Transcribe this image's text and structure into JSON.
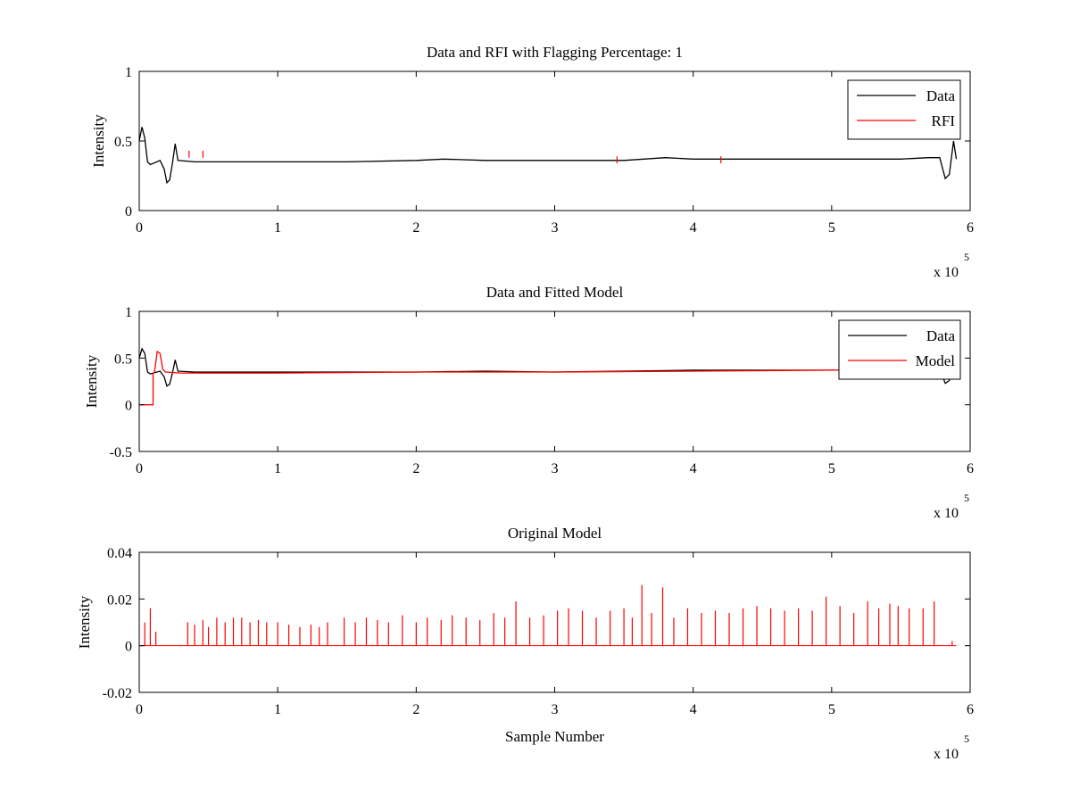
{
  "figure": {
    "background": "#ffffff"
  },
  "colors": {
    "data": "#000000",
    "rfi": "#ff0000",
    "model": "#ff0000",
    "axis": "#000000"
  },
  "chart_data": [
    {
      "type": "line",
      "title": "Data and RFI with Flagging Percentage: 1",
      "xlabel": "",
      "ylabel": "Intensity",
      "xlim": [
        0,
        600000
      ],
      "ylim": [
        0,
        1
      ],
      "xticks": [
        0,
        1,
        2,
        3,
        4,
        5,
        6
      ],
      "xtick_labels": [
        "0",
        "1",
        "2",
        "3",
        "4",
        "5",
        "6"
      ],
      "x_multiplier": {
        "base": "x 10",
        "exponent": "5"
      },
      "yticks": [
        0,
        0.5,
        1
      ],
      "ytick_labels": [
        "0",
        "0.5",
        "1"
      ],
      "legend": {
        "position": "top-right",
        "entries": [
          "Data",
          "RFI"
        ]
      },
      "series": [
        {
          "name": "Data",
          "color": "#000000",
          "x": [
            0,
            2000,
            4000,
            6000,
            8000,
            15000,
            18000,
            20000,
            22000,
            24000,
            26000,
            28000,
            40000,
            60000,
            100000,
            150000,
            200000,
            220000,
            250000,
            300000,
            350000,
            380000,
            400000,
            450000,
            500000,
            550000,
            570000,
            578000,
            582000,
            585000,
            588000,
            590000
          ],
          "y": [
            0.5,
            0.6,
            0.52,
            0.35,
            0.33,
            0.36,
            0.3,
            0.2,
            0.22,
            0.34,
            0.48,
            0.36,
            0.35,
            0.35,
            0.35,
            0.35,
            0.36,
            0.37,
            0.36,
            0.36,
            0.36,
            0.38,
            0.37,
            0.37,
            0.37,
            0.37,
            0.38,
            0.38,
            0.23,
            0.26,
            0.5,
            0.37
          ]
        },
        {
          "name": "RFI",
          "color": "#ff0000",
          "spikes": [
            {
              "x": 36000,
              "y": 0.43
            },
            {
              "x": 46000,
              "y": 0.43
            },
            {
              "x": 345000,
              "y": 0.39
            },
            {
              "x": 420000,
              "y": 0.39
            }
          ]
        }
      ]
    },
    {
      "type": "line",
      "title": "Data and Fitted Model",
      "xlabel": "",
      "ylabel": "Intensity",
      "xlim": [
        0,
        600000
      ],
      "ylim": [
        -0.5,
        1
      ],
      "xticks": [
        0,
        1,
        2,
        3,
        4,
        5,
        6
      ],
      "xtick_labels": [
        "0",
        "1",
        "2",
        "3",
        "4",
        "5",
        "6"
      ],
      "x_multiplier": {
        "base": "x 10",
        "exponent": "5"
      },
      "yticks": [
        -0.5,
        0,
        0.5,
        1
      ],
      "ytick_labels": [
        "-0.5",
        "0",
        "0.5",
        "1"
      ],
      "legend": {
        "position": "top-right",
        "entries": [
          "Data",
          "Model"
        ]
      },
      "series": [
        {
          "name": "Data",
          "color": "#000000",
          "x": [
            0,
            2000,
            4000,
            6000,
            8000,
            15000,
            18000,
            20000,
            22000,
            24000,
            26000,
            28000,
            40000,
            60000,
            100000,
            150000,
            200000,
            250000,
            300000,
            350000,
            400000,
            450000,
            500000,
            550000,
            570000,
            578000,
            582000,
            585000,
            588000,
            590000
          ],
          "y": [
            0.5,
            0.6,
            0.55,
            0.35,
            0.33,
            0.36,
            0.3,
            0.2,
            0.22,
            0.34,
            0.48,
            0.36,
            0.35,
            0.35,
            0.35,
            0.35,
            0.35,
            0.36,
            0.35,
            0.36,
            0.37,
            0.37,
            0.37,
            0.37,
            0.38,
            0.38,
            0.23,
            0.26,
            0.5,
            0.37
          ]
        },
        {
          "name": "Model",
          "color": "#ff0000",
          "x": [
            0,
            10000,
            10001,
            11000,
            13000,
            15000,
            17000,
            19000,
            30000,
            60000,
            100000,
            200000,
            300000,
            400000,
            500000,
            590000
          ],
          "y": [
            0,
            0,
            0.33,
            0.35,
            0.57,
            0.55,
            0.38,
            0.35,
            0.34,
            0.34,
            0.34,
            0.35,
            0.35,
            0.36,
            0.37,
            0.37
          ]
        }
      ]
    },
    {
      "type": "line",
      "title": "Original Model",
      "xlabel": "Sample Number",
      "ylabel": "Intensity",
      "xlim": [
        0,
        600000
      ],
      "ylim": [
        -0.02,
        0.04
      ],
      "xticks": [
        0,
        1,
        2,
        3,
        4,
        5,
        6
      ],
      "xtick_labels": [
        "0",
        "1",
        "2",
        "3",
        "4",
        "5",
        "6"
      ],
      "x_multiplier": {
        "base": "x 10",
        "exponent": "5"
      },
      "yticks": [
        -0.02,
        0,
        0.02,
        0.04
      ],
      "ytick_labels": [
        "-0.02",
        "0",
        "0.02",
        "0.04"
      ],
      "series": [
        {
          "color": "#ff0000",
          "baseline": 0,
          "spikes": [
            {
              "x": 4000,
              "y": 0.01
            },
            {
              "x": 8000,
              "y": 0.016
            },
            {
              "x": 12000,
              "y": 0.006
            },
            {
              "x": 35000,
              "y": 0.01
            },
            {
              "x": 40000,
              "y": 0.009
            },
            {
              "x": 46000,
              "y": 0.011
            },
            {
              "x": 50000,
              "y": 0.008
            },
            {
              "x": 56000,
              "y": 0.012
            },
            {
              "x": 62000,
              "y": 0.01
            },
            {
              "x": 68000,
              "y": 0.012
            },
            {
              "x": 74000,
              "y": 0.012
            },
            {
              "x": 80000,
              "y": 0.01
            },
            {
              "x": 86000,
              "y": 0.011
            },
            {
              "x": 92000,
              "y": 0.01
            },
            {
              "x": 100000,
              "y": 0.01
            },
            {
              "x": 108000,
              "y": 0.009
            },
            {
              "x": 116000,
              "y": 0.008
            },
            {
              "x": 124000,
              "y": 0.009
            },
            {
              "x": 130000,
              "y": 0.008
            },
            {
              "x": 136000,
              "y": 0.01
            },
            {
              "x": 148000,
              "y": 0.012
            },
            {
              "x": 156000,
              "y": 0.01
            },
            {
              "x": 164000,
              "y": 0.012
            },
            {
              "x": 172000,
              "y": 0.011
            },
            {
              "x": 180000,
              "y": 0.01
            },
            {
              "x": 190000,
              "y": 0.013
            },
            {
              "x": 200000,
              "y": 0.01
            },
            {
              "x": 208000,
              "y": 0.012
            },
            {
              "x": 218000,
              "y": 0.011
            },
            {
              "x": 226000,
              "y": 0.013
            },
            {
              "x": 236000,
              "y": 0.012
            },
            {
              "x": 246000,
              "y": 0.011
            },
            {
              "x": 256000,
              "y": 0.014
            },
            {
              "x": 264000,
              "y": 0.012
            },
            {
              "x": 272000,
              "y": 0.019
            },
            {
              "x": 282000,
              "y": 0.012
            },
            {
              "x": 292000,
              "y": 0.013
            },
            {
              "x": 302000,
              "y": 0.015
            },
            {
              "x": 310000,
              "y": 0.016
            },
            {
              "x": 320000,
              "y": 0.015
            },
            {
              "x": 330000,
              "y": 0.012
            },
            {
              "x": 340000,
              "y": 0.015
            },
            {
              "x": 350000,
              "y": 0.016
            },
            {
              "x": 356000,
              "y": 0.012
            },
            {
              "x": 363000,
              "y": 0.026
            },
            {
              "x": 370000,
              "y": 0.014
            },
            {
              "x": 378000,
              "y": 0.025
            },
            {
              "x": 386000,
              "y": 0.012
            },
            {
              "x": 396000,
              "y": 0.016
            },
            {
              "x": 406000,
              "y": 0.014
            },
            {
              "x": 416000,
              "y": 0.015
            },
            {
              "x": 426000,
              "y": 0.014
            },
            {
              "x": 436000,
              "y": 0.016
            },
            {
              "x": 446000,
              "y": 0.017
            },
            {
              "x": 456000,
              "y": 0.016
            },
            {
              "x": 466000,
              "y": 0.015
            },
            {
              "x": 476000,
              "y": 0.016
            },
            {
              "x": 486000,
              "y": 0.015
            },
            {
              "x": 496000,
              "y": 0.021
            },
            {
              "x": 506000,
              "y": 0.017
            },
            {
              "x": 516000,
              "y": 0.014
            },
            {
              "x": 526000,
              "y": 0.019
            },
            {
              "x": 534000,
              "y": 0.016
            },
            {
              "x": 542000,
              "y": 0.018
            },
            {
              "x": 548000,
              "y": 0.017
            },
            {
              "x": 556000,
              "y": 0.016
            },
            {
              "x": 566000,
              "y": 0.016
            },
            {
              "x": 574000,
              "y": 0.019
            },
            {
              "x": 587000,
              "y": 0.002
            }
          ]
        }
      ]
    }
  ]
}
